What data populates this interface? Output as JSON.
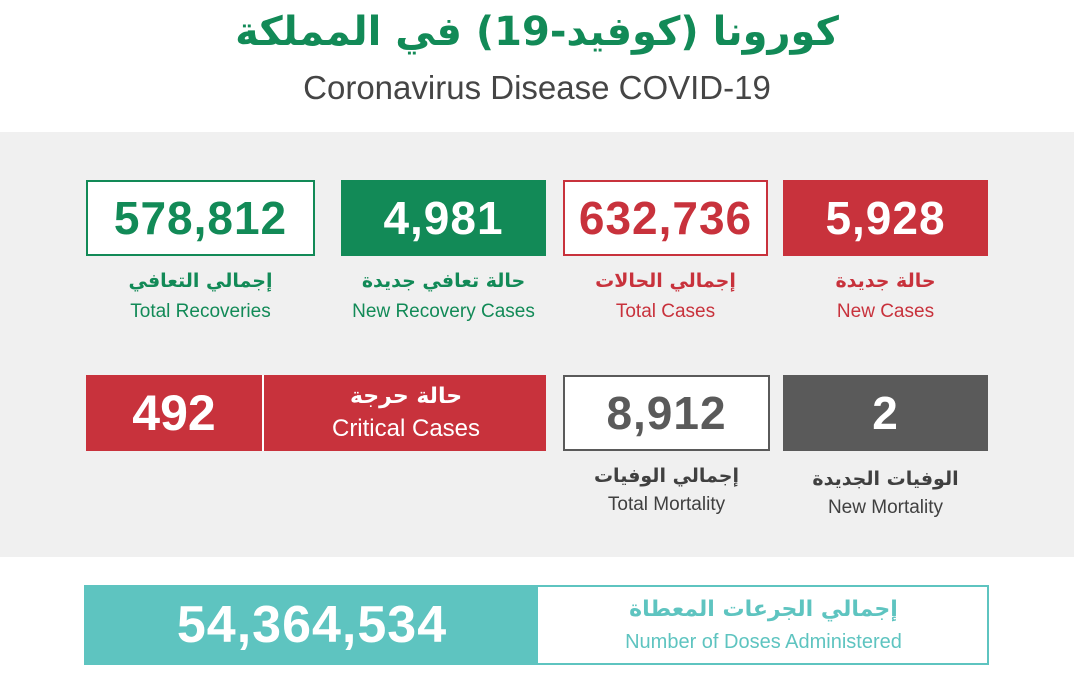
{
  "header": {
    "title_ar": "كورونا (كوفيد-19) في المملكة",
    "title_en": "Coronavirus Disease COVID-19"
  },
  "colors": {
    "green": "#128a57",
    "red": "#c8323c",
    "gray": "#5a5a5a",
    "teal": "#5ec4c0"
  },
  "stats": {
    "new_cases": {
      "value": "5,928",
      "label_ar": "حالة جديدة",
      "label_en": "New Cases"
    },
    "total_cases": {
      "value": "632,736",
      "label_ar": "إجمالي الحالات",
      "label_en": "Total Cases"
    },
    "new_recoveries": {
      "value": "4,981",
      "label_ar": "حالة تعافي جديدة",
      "label_en": "New Recovery Cases"
    },
    "total_recoveries": {
      "value": "578,812",
      "label_ar": "إجمالي التعافي",
      "label_en": "Total Recoveries"
    },
    "new_mortality": {
      "value": "2",
      "label_ar": "الوفيات الجديدة",
      "label_en": "New Mortality"
    },
    "total_mortality": {
      "value": "8,912",
      "label_ar": "إجمالي الوفيات",
      "label_en": "Total Mortality"
    },
    "critical": {
      "value": "492",
      "label_ar": "حالة حرجة",
      "label_en": "Critical Cases"
    }
  },
  "doses": {
    "value": "54,364,534",
    "label_ar": "إجمالي الجرعات المعطاة",
    "label_en": "Number of Doses Administered"
  }
}
